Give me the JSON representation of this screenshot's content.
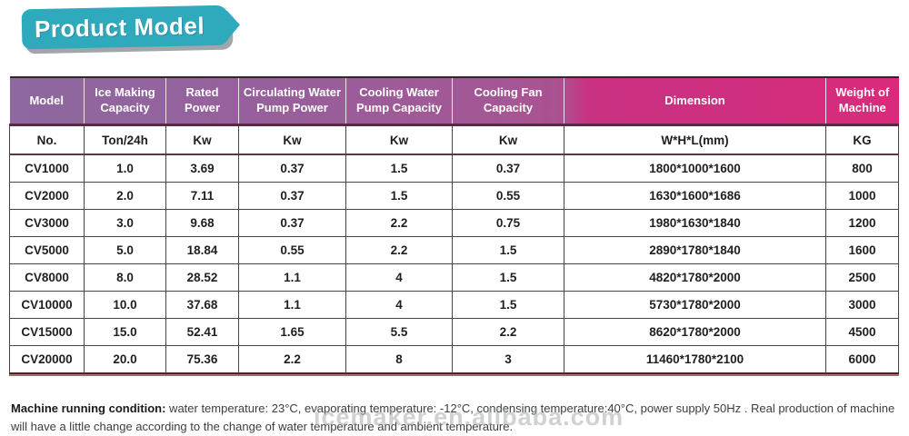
{
  "banner": {
    "title": "Product Model"
  },
  "table": {
    "headers": [
      "Model",
      "Ice Making Capacity",
      "Rated Power",
      "Circulating Water Pump Power",
      "Cooling Water Pump Capacity",
      "Cooling Fan Capacity",
      "Dimension",
      "Weight of Machine"
    ],
    "units": [
      "No.",
      "Ton/24h",
      "Kw",
      "Kw",
      "Kw",
      "Kw",
      "W*H*L(mm)",
      "KG"
    ],
    "rows": [
      [
        "CV1000",
        "1.0",
        "3.69",
        "0.37",
        "1.5",
        "0.37",
        "1800*1000*1600",
        "800"
      ],
      [
        "CV2000",
        "2.0",
        "7.11",
        "0.37",
        "1.5",
        "0.55",
        "1630*1600*1686",
        "1000"
      ],
      [
        "CV3000",
        "3.0",
        "9.68",
        "0.37",
        "2.2",
        "0.75",
        "1980*1630*1840",
        "1200"
      ],
      [
        "CV5000",
        "5.0",
        "18.84",
        "0.55",
        "2.2",
        "1.5",
        "2890*1780*1840",
        "1600"
      ],
      [
        "CV8000",
        "8.0",
        "28.52",
        "1.1",
        "4",
        "1.5",
        "4820*1780*2000",
        "2500"
      ],
      [
        "CV10000",
        "10.0",
        "37.68",
        "1.1",
        "4",
        "1.5",
        "5730*1780*2000",
        "3000"
      ],
      [
        "CV15000",
        "15.0",
        "52.41",
        "1.65",
        "5.5",
        "2.2",
        "8620*1780*2000",
        "4500"
      ],
      [
        "CV20000",
        "20.0",
        "75.36",
        "2.2",
        "8",
        "3",
        "11460*1780*2100",
        "6000"
      ]
    ]
  },
  "footer": {
    "label": "Machine running condition:",
    "text": " water temperature: 23°C, evaporating temperature: -12°C, condensing temperature:40°C, power supply 50Hz . Real production of machine will have a little change according to the change of water temperature and ambient temperature."
  },
  "watermark": {
    "text": "icemaker.en.alibaba.com"
  },
  "colors": {
    "teal": "#2FA9BC",
    "header_left": "#8E68A0",
    "header_right": "#DB2A7B",
    "line_dark": "#33262B",
    "line_maroon": "#5C2742",
    "watermark": "#A8ACB0"
  }
}
